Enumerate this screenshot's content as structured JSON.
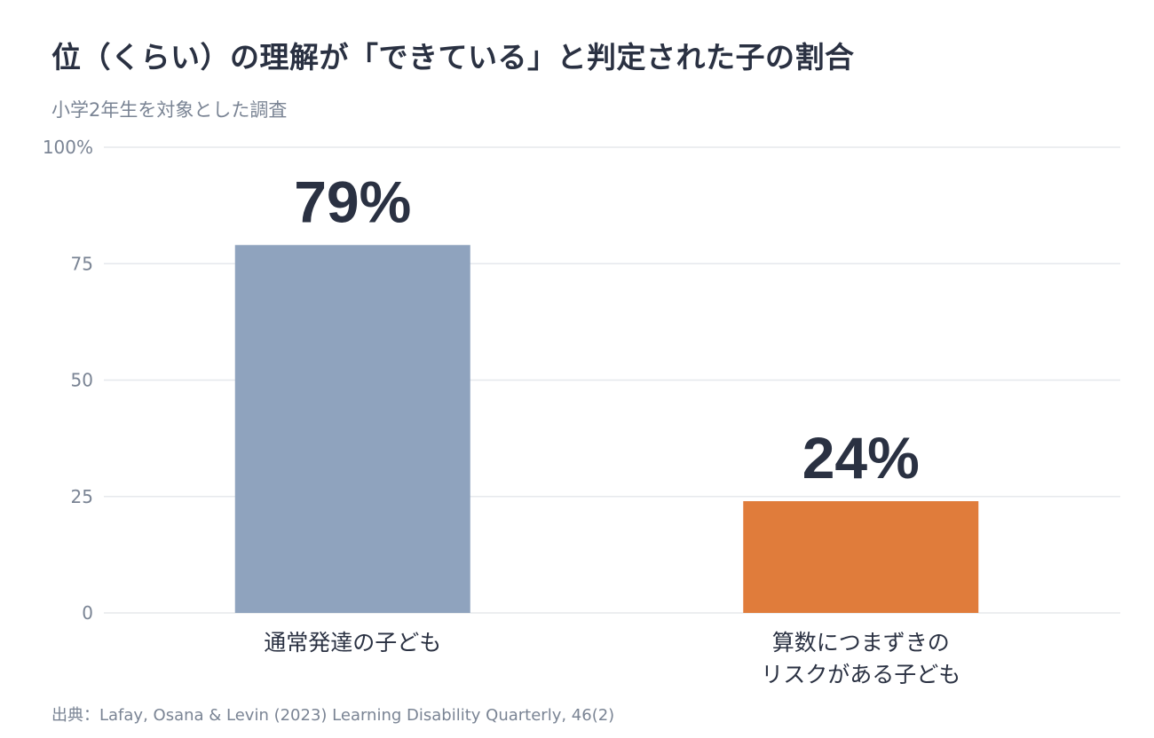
{
  "title": "位（くらい）の理解が「できている」と判定された子の割合",
  "subtitle": "小学2年生を対象とした調査",
  "source": "出典：Lafay, Osana & Levin (2023) Learning Disability Quarterly, 46(2)",
  "chart_data": {
    "type": "bar",
    "categories": [
      [
        "通常発達の子ども"
      ],
      [
        "算数につまずきの",
        "リスクがある子ども"
      ]
    ],
    "values": [
      79,
      24
    ],
    "value_labels": [
      "79%",
      "24%"
    ],
    "colors": [
      "#8fa3be",
      "#e07c3b"
    ],
    "ylim": [
      0,
      100
    ],
    "yticks": [
      0,
      25,
      50,
      75,
      100
    ],
    "ytick_labels": [
      "0",
      "25",
      "50",
      "75",
      "100%"
    ],
    "grid": true,
    "legend": "none"
  }
}
